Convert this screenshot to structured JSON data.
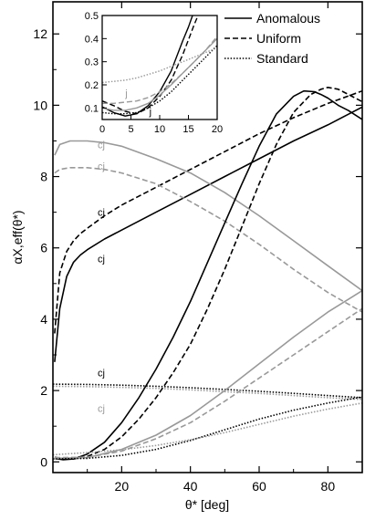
{
  "chart_data": [
    {
      "type": "line",
      "xlabel": "θ* [deg]",
      "ylabel": "αX,eff(θ*)",
      "xlim": [
        0,
        90
      ],
      "ylim": [
        -0.3,
        12.9
      ],
      "x_ticks": [
        "20",
        "40",
        "60",
        "80"
      ],
      "y_ticks": [
        "0",
        "2",
        "4",
        "6",
        "8",
        "10",
        "12"
      ],
      "legend": {
        "position": "top-right",
        "entries": [
          {
            "label": "Anomalous",
            "dash": "solid"
          },
          {
            "label": "Uniform",
            "dash": "dashed"
          },
          {
            "label": "Standard",
            "dash": "dotted"
          }
        ]
      },
      "curve_labels": [
        {
          "text": "cj",
          "x": 13,
          "y": 8.9,
          "color": "#999999"
        },
        {
          "text": "cj",
          "x": 13,
          "y": 8.3,
          "color": "#999999"
        },
        {
          "text": "cj",
          "x": 13,
          "y": 7.0,
          "color": "#000000"
        },
        {
          "text": "cj",
          "x": 13,
          "y": 5.7,
          "color": "#000000"
        },
        {
          "text": "cj",
          "x": 13,
          "y": 2.5,
          "color": "#000000"
        },
        {
          "text": "cj",
          "x": 13,
          "y": 1.5,
          "color": "#999999"
        }
      ],
      "series": [
        {
          "style": "solid",
          "color": "#000000",
          "x": [
            0.5,
            2,
            4,
            6,
            8,
            10,
            15,
            20,
            30,
            40,
            50,
            60,
            70,
            80,
            90
          ],
          "y": [
            2.8,
            4.3,
            5.2,
            5.6,
            5.8,
            5.95,
            6.25,
            6.5,
            7.0,
            7.5,
            8.0,
            8.5,
            9.0,
            9.45,
            9.95
          ]
        },
        {
          "style": "dashed",
          "color": "#000000",
          "x": [
            0.5,
            2,
            4,
            6,
            8,
            10,
            15,
            20,
            30,
            40,
            50,
            60,
            70,
            80,
            90
          ],
          "y": [
            3.6,
            5.3,
            5.9,
            6.2,
            6.4,
            6.55,
            6.9,
            7.2,
            7.7,
            8.2,
            8.7,
            9.2,
            9.65,
            10.05,
            10.4
          ]
        },
        {
          "style": "solid",
          "color": "#999999",
          "x": [
            0.5,
            2,
            5,
            10,
            15,
            20,
            30,
            40,
            50,
            60,
            70,
            80,
            90
          ],
          "y": [
            8.6,
            8.9,
            9.0,
            9.0,
            8.95,
            8.85,
            8.5,
            8.1,
            7.55,
            6.9,
            6.2,
            5.5,
            4.8
          ]
        },
        {
          "style": "dashed",
          "color": "#999999",
          "x": [
            0.5,
            2,
            5,
            10,
            15,
            20,
            30,
            40,
            50,
            60,
            70,
            80,
            90
          ],
          "y": [
            8.1,
            8.2,
            8.25,
            8.25,
            8.2,
            8.1,
            7.8,
            7.3,
            6.75,
            6.1,
            5.4,
            4.75,
            4.2
          ]
        },
        {
          "style": "dotted",
          "color": "#000000",
          "x": [
            0,
            10,
            20,
            30,
            40,
            50,
            60,
            70,
            80,
            90
          ],
          "y": [
            2.18,
            2.17,
            2.15,
            2.12,
            2.08,
            2.03,
            1.98,
            1.92,
            1.86,
            1.8
          ]
        },
        {
          "style": "dotted",
          "color": "#999999",
          "x": [
            0,
            10,
            20,
            30,
            40,
            50,
            60,
            70,
            80,
            90
          ],
          "y": [
            2.12,
            2.11,
            2.09,
            2.06,
            2.02,
            1.97,
            1.92,
            1.86,
            1.8,
            1.75
          ]
        },
        {
          "style": "solid",
          "color": "#000000",
          "x": [
            0.5,
            3,
            6,
            10,
            15,
            20,
            25,
            30,
            35,
            40,
            45,
            50,
            55,
            60,
            65,
            70,
            73,
            76,
            78,
            80,
            83,
            86,
            90
          ],
          "y": [
            0.1,
            0.06,
            0.08,
            0.22,
            0.55,
            1.1,
            1.8,
            2.6,
            3.5,
            4.5,
            5.6,
            6.7,
            7.8,
            8.85,
            9.75,
            10.25,
            10.4,
            10.38,
            10.3,
            10.2,
            10.0,
            9.85,
            9.6
          ]
        },
        {
          "style": "dashed",
          "color": "#000000",
          "x": [
            0.5,
            3,
            6,
            10,
            15,
            20,
            25,
            30,
            35,
            40,
            45,
            50,
            55,
            60,
            65,
            70,
            75,
            78,
            80,
            83,
            86,
            90
          ],
          "y": [
            0.13,
            0.09,
            0.08,
            0.15,
            0.35,
            0.7,
            1.2,
            1.8,
            2.5,
            3.3,
            4.3,
            5.4,
            6.6,
            7.8,
            8.9,
            9.8,
            10.3,
            10.45,
            10.5,
            10.45,
            10.3,
            10.1
          ]
        },
        {
          "style": "solid",
          "color": "#999999",
          "x": [
            0.5,
            10,
            20,
            30,
            40,
            50,
            60,
            70,
            80,
            90
          ],
          "y": [
            0.1,
            0.12,
            0.35,
            0.75,
            1.3,
            2.0,
            2.75,
            3.5,
            4.2,
            4.8
          ]
        },
        {
          "style": "dashed",
          "color": "#999999",
          "x": [
            0.5,
            10,
            20,
            30,
            40,
            50,
            60,
            70,
            80,
            90
          ],
          "y": [
            0.12,
            0.13,
            0.3,
            0.65,
            1.1,
            1.7,
            2.35,
            3.0,
            3.65,
            4.3
          ]
        },
        {
          "style": "dotted",
          "color": "#000000",
          "x": [
            0,
            10,
            20,
            30,
            40,
            50,
            60,
            70,
            80,
            90
          ],
          "y": [
            0.08,
            0.1,
            0.18,
            0.35,
            0.6,
            0.9,
            1.2,
            1.45,
            1.65,
            1.82
          ]
        },
        {
          "style": "dotted",
          "color": "#999999",
          "x": [
            0,
            10,
            20,
            30,
            40,
            50,
            60,
            70,
            80,
            90
          ],
          "y": [
            0.2,
            0.26,
            0.34,
            0.46,
            0.62,
            0.82,
            1.05,
            1.28,
            1.48,
            1.65
          ]
        }
      ]
    },
    {
      "type": "line",
      "inset": true,
      "xlim": [
        0,
        20
      ],
      "ylim": [
        0.05,
        0.5
      ],
      "x_ticks": [
        "0",
        "5",
        "10",
        "15",
        "20"
      ],
      "y_ticks": [
        "0.1",
        "0.2",
        "0.3",
        "0.4",
        "0.5"
      ],
      "curve_labels": [
        {
          "text": "j",
          "x": 4,
          "y": 0.165,
          "color": "#999999"
        },
        {
          "text": "j",
          "x": 8.2,
          "y": 0.085,
          "color": "#000000"
        }
      ],
      "series": [
        {
          "style": "solid",
          "color": "#000000",
          "x": [
            0,
            2,
            4,
            6,
            8,
            10,
            12,
            14,
            15,
            16
          ],
          "y": [
            0.105,
            0.08,
            0.065,
            0.075,
            0.11,
            0.17,
            0.26,
            0.39,
            0.45,
            0.52
          ]
        },
        {
          "style": "dashed",
          "color": "#000000",
          "x": [
            0,
            2,
            4,
            6,
            8,
            10,
            12,
            14,
            16,
            17
          ],
          "y": [
            0.13,
            0.11,
            0.085,
            0.075,
            0.1,
            0.15,
            0.22,
            0.33,
            0.46,
            0.52
          ]
        },
        {
          "style": "solid",
          "color": "#999999",
          "x": [
            0,
            2,
            4,
            6,
            8,
            10,
            12,
            14,
            16,
            18,
            20
          ],
          "y": [
            0.1,
            0.09,
            0.09,
            0.1,
            0.12,
            0.155,
            0.2,
            0.25,
            0.3,
            0.35,
            0.4
          ]
        },
        {
          "style": "dashed",
          "color": "#999999",
          "x": [
            0,
            2,
            4,
            6,
            8,
            10,
            12,
            14,
            16,
            18,
            20
          ],
          "y": [
            0.12,
            0.12,
            0.125,
            0.13,
            0.145,
            0.17,
            0.205,
            0.25,
            0.3,
            0.35,
            0.41
          ]
        },
        {
          "style": "dotted",
          "color": "#000000",
          "x": [
            0,
            2,
            4,
            6,
            8,
            10,
            12,
            14,
            16,
            18,
            20
          ],
          "y": [
            0.08,
            0.075,
            0.075,
            0.08,
            0.1,
            0.13,
            0.17,
            0.22,
            0.27,
            0.32,
            0.37
          ]
        },
        {
          "style": "dotted",
          "color": "#999999",
          "x": [
            0,
            2,
            4,
            6,
            8,
            10,
            12,
            14,
            16,
            18,
            20
          ],
          "y": [
            0.21,
            0.215,
            0.22,
            0.23,
            0.245,
            0.26,
            0.28,
            0.3,
            0.32,
            0.34,
            0.36
          ]
        }
      ]
    }
  ]
}
